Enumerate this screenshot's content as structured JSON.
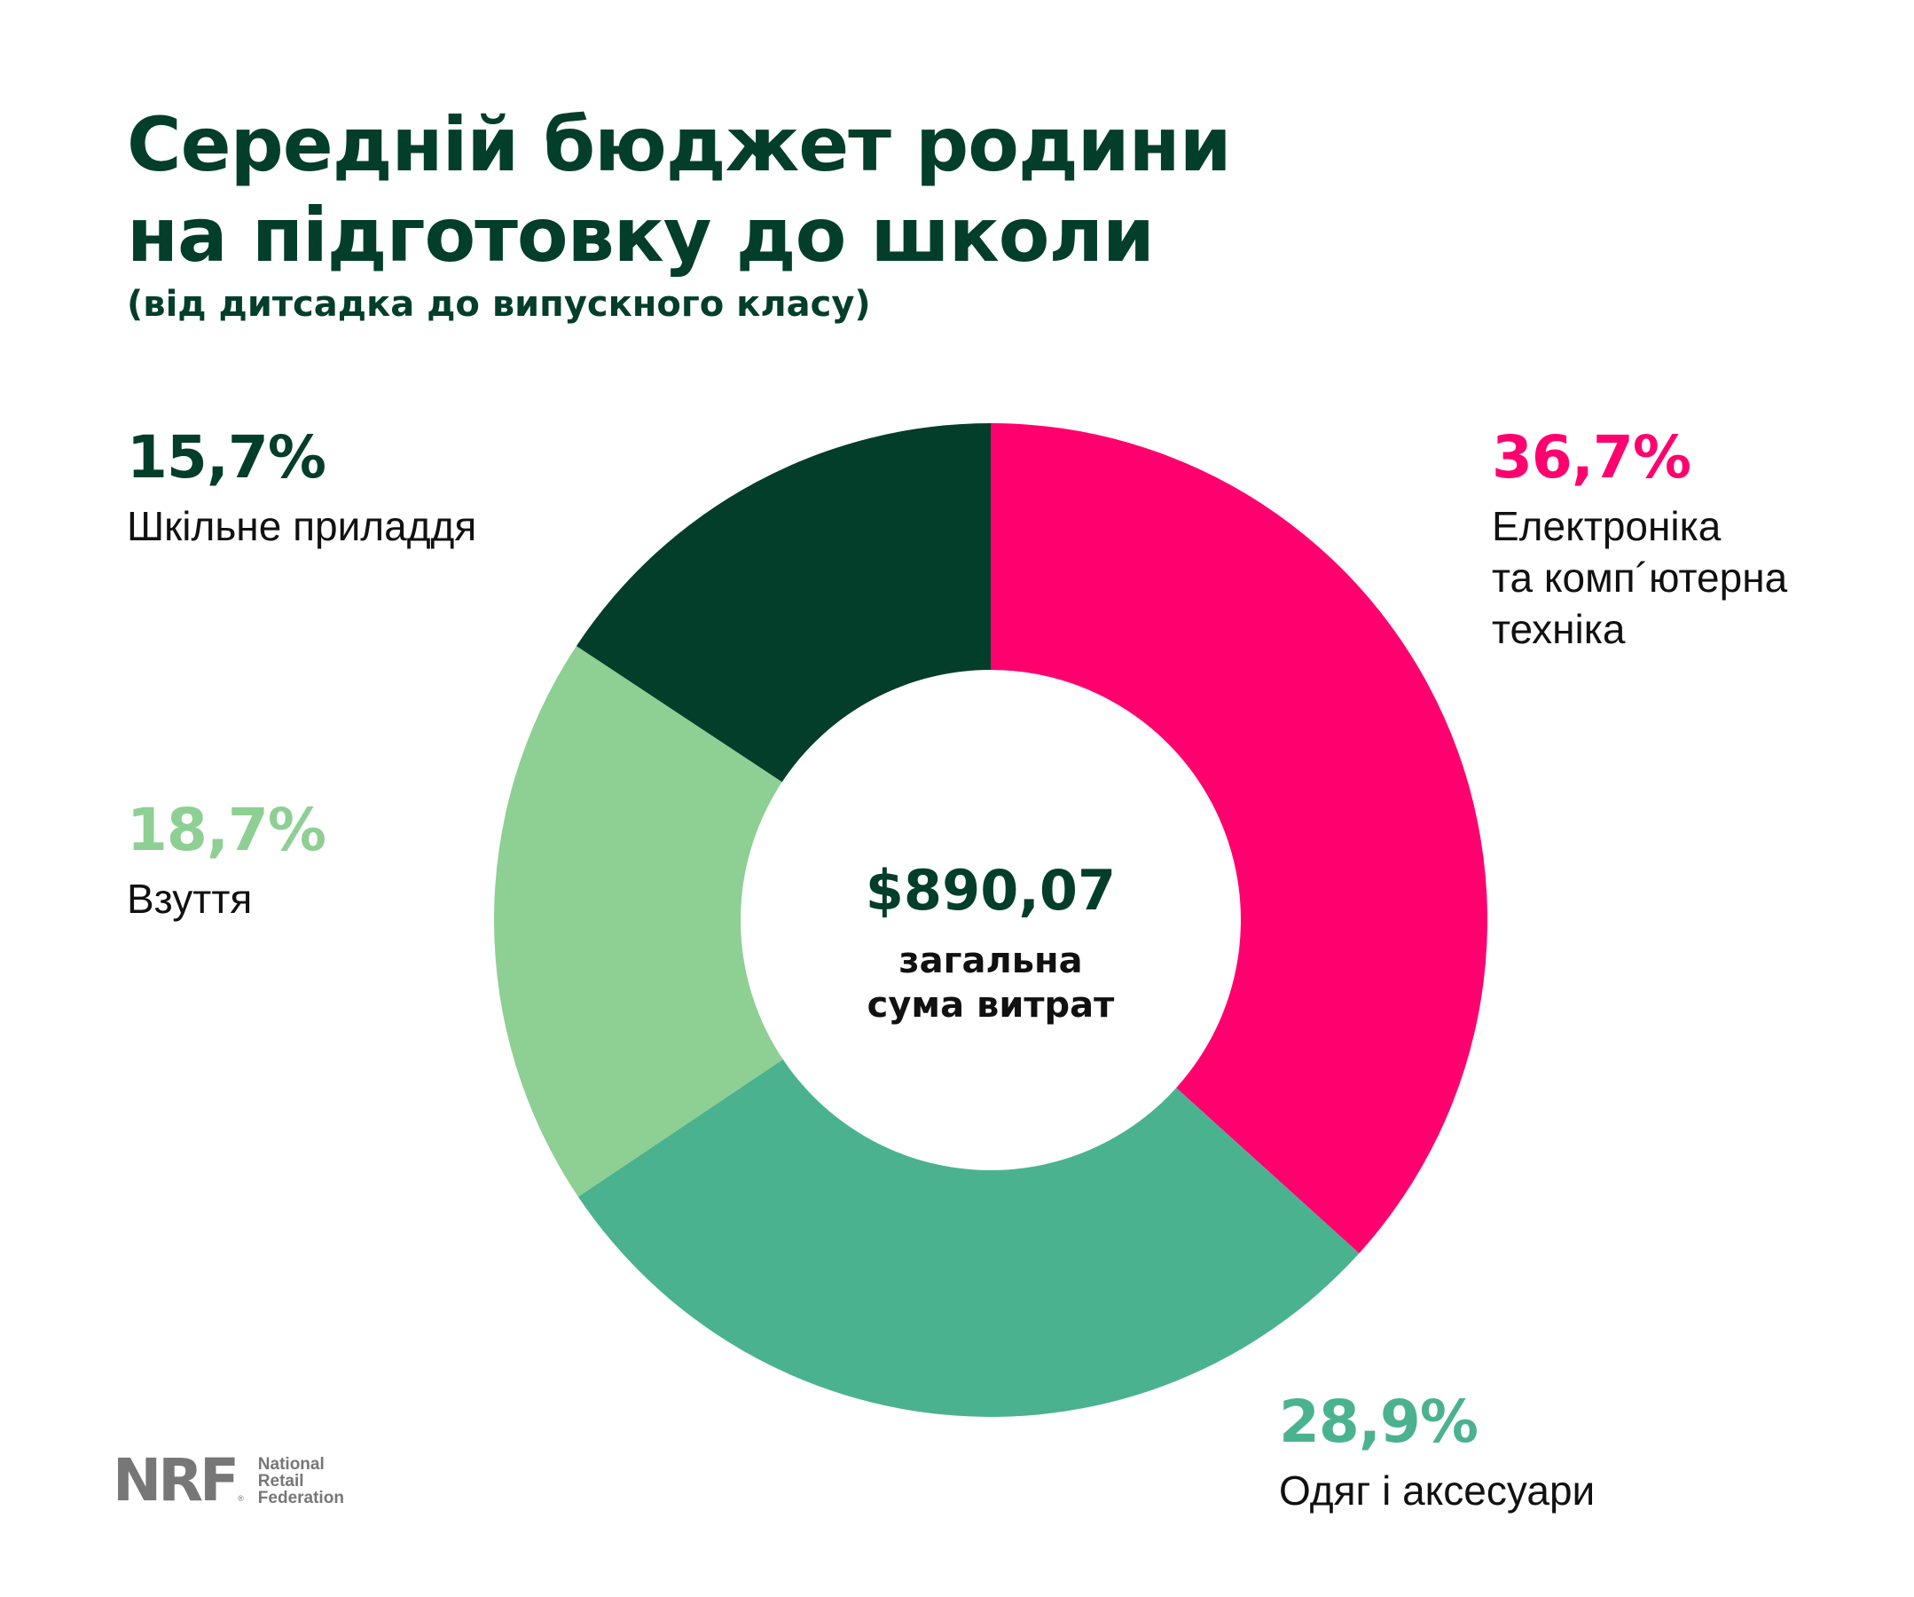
{
  "title_lines": [
    "Середній бюджет родини",
    "на підготовку до школи"
  ],
  "subtitle": "(від дитсадка до випускного класу)",
  "center": {
    "value": "$890,07",
    "caption_lines": [
      "загальна",
      "сума витрат"
    ]
  },
  "logo": {
    "mark": "NRF",
    "registered": "®",
    "text_lines": [
      "National",
      "Retail",
      "Federation"
    ]
  },
  "chart_data": {
    "type": "pie",
    "donut": true,
    "total": "$890,07",
    "slices": [
      {
        "label_lines": [
          "Електроніка",
          "та комп´ютерна",
          "техніка"
        ],
        "value": 36.7,
        "value_label": "36,7%",
        "color": "#ff006e"
      },
      {
        "label_lines": [
          "Одяг і аксесуари"
        ],
        "value": 28.9,
        "value_label": "28,9%",
        "color": "#4bb28f"
      },
      {
        "label_lines": [
          "Взуття"
        ],
        "value": 18.7,
        "value_label": "18,7%",
        "color": "#8ecf94"
      },
      {
        "label_lines": [
          "Шкільне приладдя"
        ],
        "value": 15.7,
        "value_label": "15,7%",
        "color": "#023e2a"
      }
    ]
  }
}
